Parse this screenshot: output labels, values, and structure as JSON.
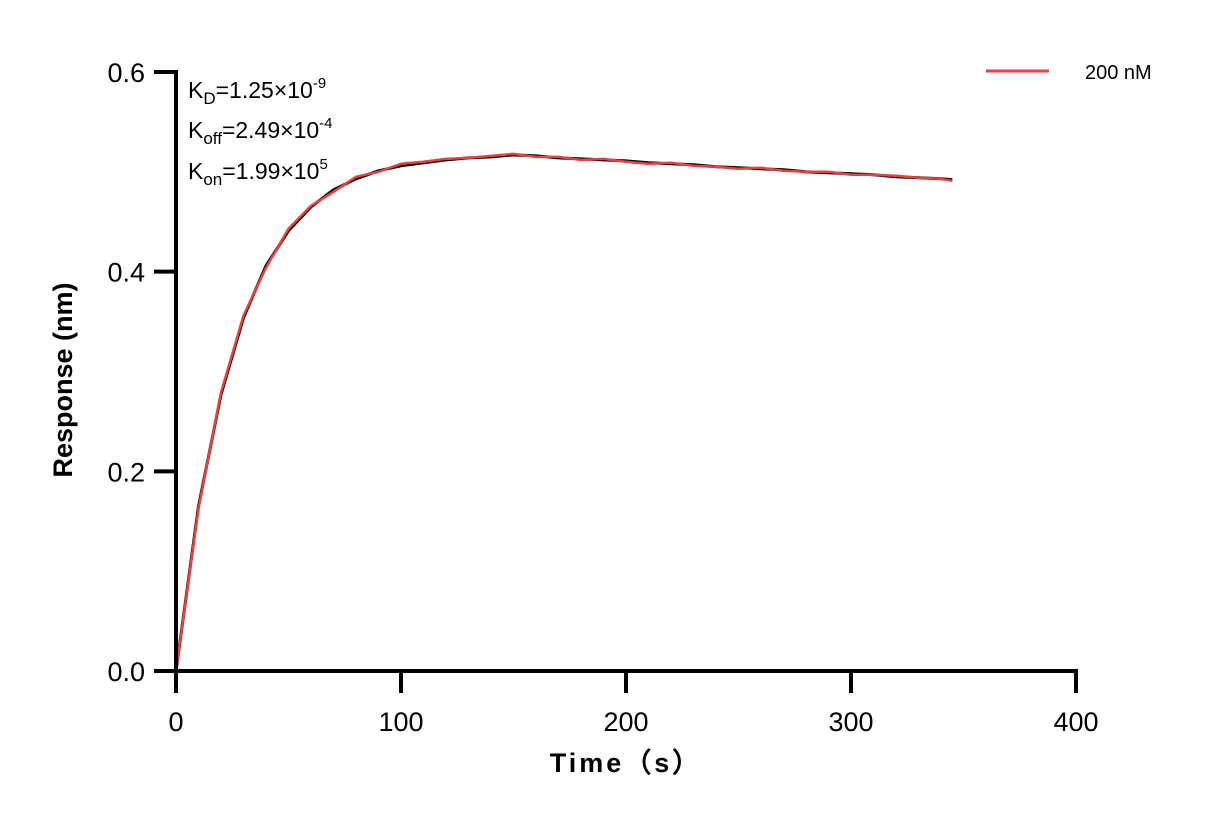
{
  "chart_data": {
    "type": "line",
    "xlabel": "Time（s）",
    "ylabel": "Response (nm)",
    "xlim": [
      0,
      400
    ],
    "ylim": [
      0,
      0.6
    ],
    "xticks": [
      "0",
      "100",
      "200",
      "300",
      "400"
    ],
    "yticks": [
      "0.0",
      "0.2",
      "0.4",
      "0.6"
    ],
    "grid": false,
    "legend_position": "top-right",
    "annotations": [
      {
        "label": "K",
        "sub": "D",
        "value": "=1.25×10",
        "exp": "-9"
      },
      {
        "label": "K",
        "sub": "off",
        "value": "=2.49×10",
        "exp": "-4"
      },
      {
        "label": "K",
        "sub": "on",
        "value": "=1.99×10",
        "exp": "5"
      }
    ],
    "x": [
      0,
      10,
      20,
      30,
      40,
      50,
      60,
      70,
      80,
      90,
      100,
      110,
      120,
      130,
      140,
      150,
      160,
      170,
      180,
      190,
      200,
      210,
      220,
      230,
      240,
      250,
      260,
      270,
      280,
      290,
      300,
      310,
      320,
      330,
      340,
      345
    ],
    "series": [
      {
        "name": "200 nM",
        "color": "#e8413f",
        "values": [
          0,
          0.163,
          0.279,
          0.356,
          0.404,
          0.443,
          0.466,
          0.48,
          0.495,
          0.5,
          0.508,
          0.51,
          0.513,
          0.514,
          0.516,
          0.518,
          0.515,
          0.515,
          0.512,
          0.513,
          0.51,
          0.508,
          0.509,
          0.506,
          0.505,
          0.503,
          0.504,
          0.501,
          0.5,
          0.5,
          0.497,
          0.497,
          0.496,
          0.494,
          0.493,
          0.491
        ]
      },
      {
        "color": "#000000",
        "values": [
          0,
          0.165,
          0.277,
          0.354,
          0.406,
          0.441,
          0.465,
          0.482,
          0.493,
          0.501,
          0.506,
          0.509,
          0.512,
          0.514,
          0.515,
          0.517,
          0.516,
          0.514,
          0.513,
          0.512,
          0.511,
          0.509,
          0.508,
          0.507,
          0.505,
          0.504,
          0.503,
          0.502,
          0.5,
          0.499,
          0.498,
          0.497,
          0.495,
          0.494,
          0.493,
          0.492
        ]
      }
    ]
  }
}
